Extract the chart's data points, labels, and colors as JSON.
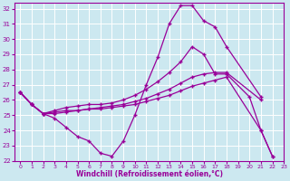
{
  "xlabel": "Windchill (Refroidissement éolien,°C)",
  "xlim": [
    -0.5,
    23
  ],
  "ylim": [
    22,
    32.4
  ],
  "yticks": [
    22,
    23,
    24,
    25,
    26,
    27,
    28,
    29,
    30,
    31,
    32
  ],
  "xticks": [
    0,
    1,
    2,
    3,
    4,
    5,
    6,
    7,
    8,
    9,
    10,
    11,
    12,
    13,
    14,
    15,
    16,
    17,
    18,
    19,
    20,
    21,
    22,
    23
  ],
  "bg_color": "#cce8f0",
  "line_color": "#990099",
  "grid_color": "#ffffff",
  "line1_x": [
    0,
    1,
    2,
    3,
    4,
    5,
    6,
    7,
    8,
    9,
    10,
    11,
    12,
    13,
    14,
    15,
    16,
    17,
    18,
    21
  ],
  "line1_y": [
    26.5,
    25.7,
    25.1,
    24.8,
    24.2,
    23.6,
    23.3,
    22.5,
    22.3,
    23.3,
    25.0,
    27.0,
    28.8,
    31.0,
    32.2,
    32.2,
    31.2,
    30.8,
    29.5,
    26.2
  ],
  "line2_x": [
    0,
    1,
    2,
    3,
    4,
    5,
    6,
    7,
    8,
    9,
    10,
    11,
    12,
    13,
    14,
    15,
    16,
    17,
    18,
    20,
    21,
    22
  ],
  "line2_y": [
    26.5,
    25.7,
    25.1,
    25.3,
    25.5,
    25.6,
    25.7,
    25.7,
    25.8,
    26.0,
    26.3,
    26.7,
    27.2,
    27.8,
    28.5,
    29.5,
    29.0,
    27.7,
    27.7,
    26.2,
    24.0,
    22.3
  ],
  "line3_x": [
    0,
    1,
    2,
    3,
    4,
    5,
    6,
    7,
    8,
    9,
    10,
    11,
    12,
    13,
    14,
    15,
    16,
    17,
    18,
    21
  ],
  "line3_y": [
    26.5,
    25.7,
    25.1,
    25.2,
    25.3,
    25.3,
    25.4,
    25.5,
    25.6,
    25.7,
    25.9,
    26.1,
    26.4,
    26.7,
    27.1,
    27.5,
    27.7,
    27.8,
    27.8,
    26.0
  ],
  "line4_x": [
    0,
    1,
    2,
    3,
    4,
    5,
    6,
    7,
    8,
    9,
    10,
    11,
    12,
    13,
    14,
    15,
    16,
    17,
    18,
    21,
    22
  ],
  "line4_y": [
    26.5,
    25.7,
    25.1,
    25.1,
    25.2,
    25.3,
    25.4,
    25.4,
    25.5,
    25.6,
    25.7,
    25.9,
    26.1,
    26.3,
    26.6,
    26.9,
    27.1,
    27.3,
    27.5,
    24.0,
    22.3
  ]
}
